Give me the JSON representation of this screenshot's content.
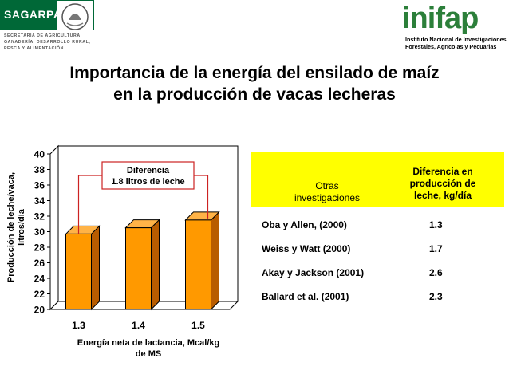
{
  "header": {
    "left_logo_text": "SAGARPA",
    "left_subtitle_lines": [
      "SECRETARÍA DE AGRICULTURA,",
      "GANADERÍA, DESARROLLO RURAL,",
      "PESCA Y ALIMENTACIÓN"
    ],
    "right_logo_text": "inifap",
    "right_subtitle_lines": [
      "Instituto Nacional de Investigaciones",
      "Forestales, Agrícolas y Pecuarias"
    ],
    "brand_green": "#006837"
  },
  "slide": {
    "title_line1": "Importancia de la energía del ensilado de maíz",
    "title_line2": "en la producción de vacas lecheras"
  },
  "chart_data": {
    "type": "bar",
    "categories": [
      "1.3",
      "1.4",
      "1.5"
    ],
    "values": [
      29.7,
      30.5,
      31.5
    ],
    "ylim": [
      20,
      40
    ],
    "yticks": [
      "20",
      "22",
      "24",
      "26",
      "28",
      "30",
      "32",
      "34",
      "36",
      "38",
      "40"
    ],
    "ylabel_line1": "Producción de leche/vaca,",
    "ylabel_line2": "litros/día",
    "xlabel_line1": "Energía neta de lactancia, Mcal/kg",
    "xlabel_line2": "de MS",
    "annotation_line1": "Diferencia",
    "annotation_line2": "1.8 litros de leche",
    "bar_color": "#ff9900",
    "grid": false
  },
  "table": {
    "header_col1_line1": "Otras",
    "header_col1_line2": "investigaciones",
    "header_col2_line1": "Diferencia en",
    "header_col2_line2": "producción de",
    "header_col2_line3": "leche, kg/día",
    "header_color": "#ffff00",
    "rows": [
      {
        "study": "Oba y Allen, (2000)",
        "value": "1.3"
      },
      {
        "study": "Weiss y Watt (2000)",
        "value": "1.7"
      },
      {
        "study": "Akay y Jackson (2001)",
        "value": "2.6"
      },
      {
        "study": "Ballard et al. (2001)",
        "value": "2.3"
      }
    ]
  }
}
